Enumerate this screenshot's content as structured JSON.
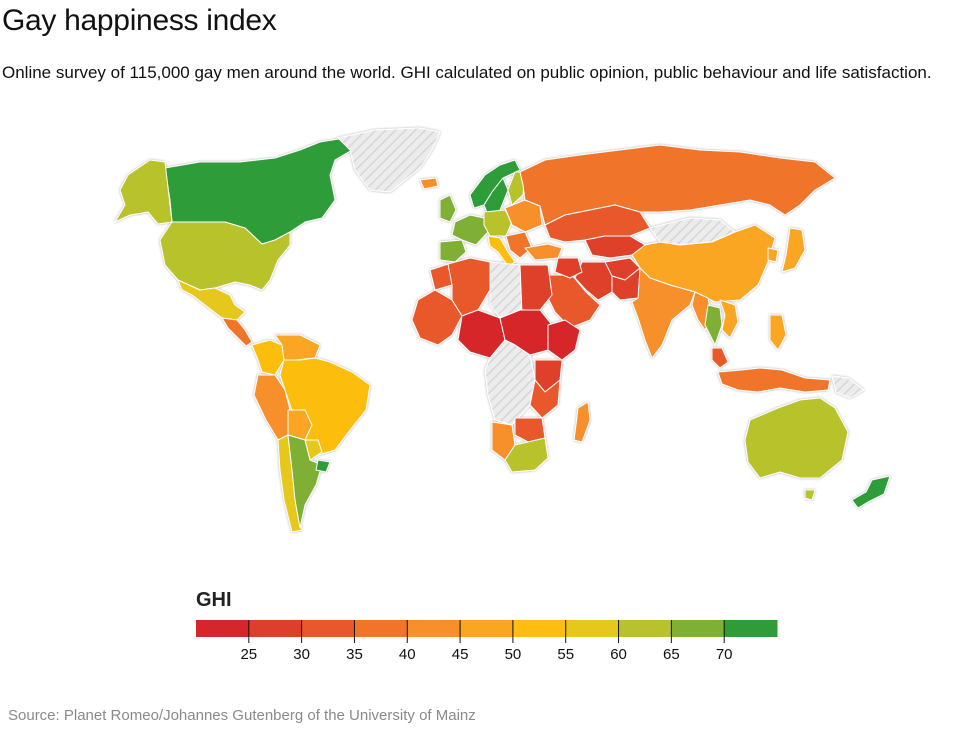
{
  "title": "Gay happiness index",
  "subtitle": "Online survey of 115,000 gay men around the world. GHI calculated on public opinion, public behaviour and life satisfaction.",
  "source": "Source: Planet Romeo/Johannes Gutenberg of the University of Mainz",
  "chart_data": {
    "type": "choropleth",
    "title": "Gay happiness index",
    "legend_title": "GHI",
    "scale": {
      "min": 20,
      "max": 75,
      "ticks": [
        25,
        30,
        35,
        40,
        45,
        50,
        55,
        60,
        65,
        70
      ],
      "bands": [
        {
          "from": 20,
          "to": 25,
          "color": "#d7262b"
        },
        {
          "from": 25,
          "to": 30,
          "color": "#de3f2c"
        },
        {
          "from": 30,
          "to": 35,
          "color": "#e9582c"
        },
        {
          "from": 35,
          "to": 40,
          "color": "#f0742a"
        },
        {
          "from": 40,
          "to": 45,
          "color": "#f7902a"
        },
        {
          "from": 45,
          "to": 50,
          "color": "#fba622"
        },
        {
          "from": 50,
          "to": 55,
          "color": "#fdbd11"
        },
        {
          "from": 55,
          "to": 60,
          "color": "#e6c81a"
        },
        {
          "from": 60,
          "to": 65,
          "color": "#b8c22c"
        },
        {
          "from": 65,
          "to": 70,
          "color": "#7fb034"
        },
        {
          "from": 70,
          "to": 75,
          "color": "#2f9c38"
        }
      ],
      "no_data_color": "#e9e9e9"
    },
    "regions": [
      {
        "name": "Canada",
        "value": 72
      },
      {
        "name": "Alaska",
        "value": 62
      },
      {
        "name": "United States",
        "value": 62
      },
      {
        "name": "Mexico",
        "value": 57
      },
      {
        "name": "Central America",
        "value": 38
      },
      {
        "name": "Colombia",
        "value": 53
      },
      {
        "name": "Venezuela",
        "value": 46
      },
      {
        "name": "Peru",
        "value": 43
      },
      {
        "name": "Brazil",
        "value": 53
      },
      {
        "name": "Bolivia",
        "value": 48
      },
      {
        "name": "Paraguay",
        "value": 58
      },
      {
        "name": "Chile",
        "value": 55
      },
      {
        "name": "Argentina",
        "value": 66
      },
      {
        "name": "Uruguay",
        "value": 71
      },
      {
        "name": "Greenland",
        "value": null
      },
      {
        "name": "Iceland",
        "value": 43
      },
      {
        "name": "Norway",
        "value": 72
      },
      {
        "name": "Sweden",
        "value": 71
      },
      {
        "name": "Finland",
        "value": 63
      },
      {
        "name": "United Kingdom",
        "value": 67
      },
      {
        "name": "Western Europe",
        "value": 67
      },
      {
        "name": "Spain",
        "value": 65
      },
      {
        "name": "Central Europe",
        "value": 60
      },
      {
        "name": "Italy",
        "value": 52
      },
      {
        "name": "Eastern Europe",
        "value": 40
      },
      {
        "name": "Balkans",
        "value": 36
      },
      {
        "name": "Turkey",
        "value": 40
      },
      {
        "name": "Russia",
        "value": 38
      },
      {
        "name": "Kazakhstan",
        "value": 30
      },
      {
        "name": "Central Asia",
        "value": 28
      },
      {
        "name": "Mongolia",
        "value": null
      },
      {
        "name": "China",
        "value": 46
      },
      {
        "name": "Japan",
        "value": 47
      },
      {
        "name": "Korea",
        "value": 45
      },
      {
        "name": "Iran",
        "value": 28
      },
      {
        "name": "Arabian Peninsula",
        "value": 31
      },
      {
        "name": "Iraq",
        "value": 27
      },
      {
        "name": "Afghanistan",
        "value": 26
      },
      {
        "name": "Pakistan",
        "value": 27
      },
      {
        "name": "India",
        "value": 41
      },
      {
        "name": "Myanmar",
        "value": 42
      },
      {
        "name": "Thailand",
        "value": 66
      },
      {
        "name": "Vietnam",
        "value": 45
      },
      {
        "name": "Philippines",
        "value": 45
      },
      {
        "name": "Malaysia",
        "value": 33
      },
      {
        "name": "Indonesia",
        "value": 38
      },
      {
        "name": "Papua New Guinea",
        "value": null
      },
      {
        "name": "Australia",
        "value": 62
      },
      {
        "name": "Tasmania",
        "value": 62
      },
      {
        "name": "New Zealand",
        "value": 72
      },
      {
        "name": "Morocco",
        "value": 32
      },
      {
        "name": "Algeria",
        "value": 33
      },
      {
        "name": "Libya",
        "value": null
      },
      {
        "name": "Egypt",
        "value": 26
      },
      {
        "name": "West Africa",
        "value": 33
      },
      {
        "name": "Nigeria",
        "value": 24
      },
      {
        "name": "Sudan",
        "value": 24
      },
      {
        "name": "Ethiopia",
        "value": 24
      },
      {
        "name": "Central Africa",
        "value": null
      },
      {
        "name": "Kenya",
        "value": 28
      },
      {
        "name": "Tanzania",
        "value": 30
      },
      {
        "name": "Namibia",
        "value": 43
      },
      {
        "name": "Zimbabwe",
        "value": 32
      },
      {
        "name": "South Africa",
        "value": 61
      },
      {
        "name": "Madagascar",
        "value": 41
      }
    ]
  }
}
